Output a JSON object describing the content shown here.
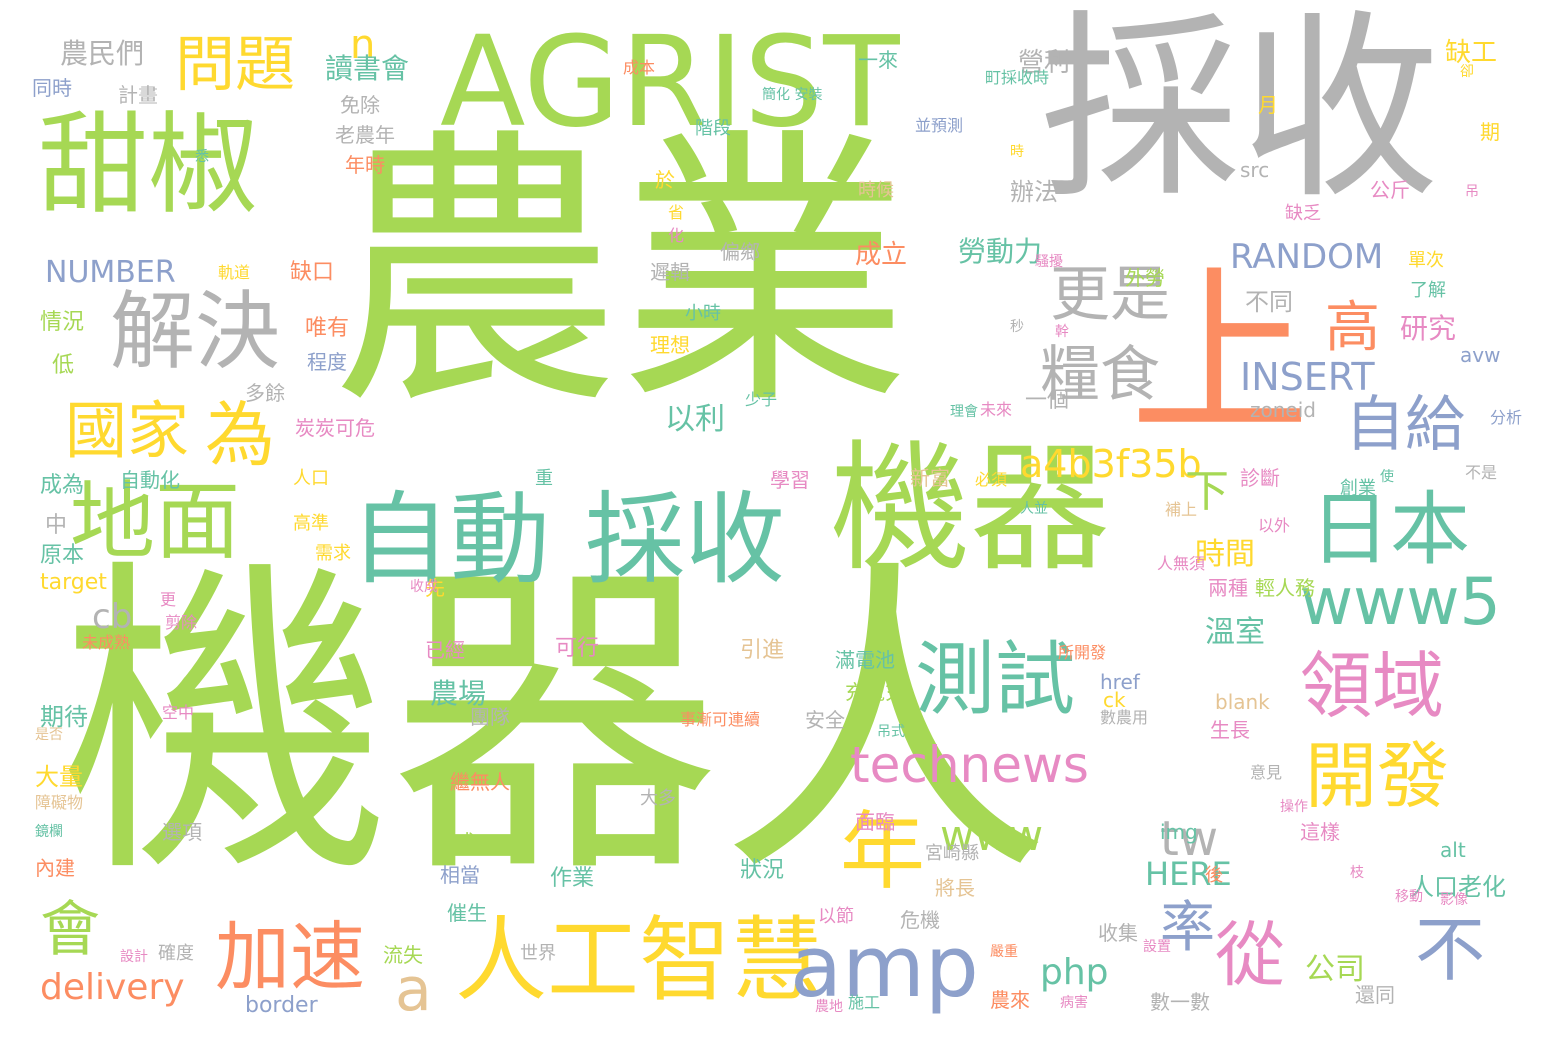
{
  "colors": {
    "green": "#a6d854",
    "gray": "#b3b3b3",
    "orange": "#fc8d62",
    "teal": "#66c2a5",
    "blue": "#8da0cb",
    "pink": "#e78ac3",
    "yellow": "#ffd92f",
    "tan": "#e5c494"
  },
  "words": [
    {
      "text": "機器人",
      "color": "green"
    },
    {
      "text": "農業",
      "color": "green"
    },
    {
      "text": "採收",
      "color": "gray"
    },
    {
      "text": "AGRIST",
      "color": "green"
    },
    {
      "text": "甜椒",
      "color": "green"
    },
    {
      "text": "上",
      "color": "orange"
    },
    {
      "text": "機器",
      "color": "green"
    },
    {
      "text": "自動",
      "color": "teal"
    },
    {
      "text": "採收",
      "color": "teal"
    },
    {
      "text": "解決",
      "color": "gray"
    },
    {
      "text": "問題",
      "color": "yellow"
    },
    {
      "text": "地面",
      "color": "green"
    },
    {
      "text": "為",
      "color": "yellow"
    },
    {
      "text": "國家",
      "color": "yellow"
    },
    {
      "text": "人工智慧",
      "color": "yellow"
    },
    {
      "text": "加速",
      "color": "orange"
    },
    {
      "text": "會",
      "color": "green"
    },
    {
      "text": "a",
      "color": "tan"
    },
    {
      "text": "amp",
      "color": "blue"
    },
    {
      "text": "年",
      "color": "yellow"
    },
    {
      "text": "測試",
      "color": "teal"
    },
    {
      "text": "日本",
      "color": "teal"
    },
    {
      "text": "www5",
      "color": "teal"
    },
    {
      "text": "領域",
      "color": "pink"
    },
    {
      "text": "開發",
      "color": "yellow"
    },
    {
      "text": "從",
      "color": "pink"
    },
    {
      "text": "不",
      "color": "blue"
    },
    {
      "text": "率",
      "color": "blue"
    },
    {
      "text": "更是",
      "color": "gray"
    },
    {
      "text": "糧食",
      "color": "gray"
    },
    {
      "text": "高",
      "color": "orange"
    },
    {
      "text": "自給",
      "color": "blue"
    },
    {
      "text": "technews",
      "color": "pink"
    },
    {
      "text": "www",
      "color": "green"
    },
    {
      "text": "tw",
      "color": "gray"
    },
    {
      "text": "delivery",
      "color": "orange"
    },
    {
      "text": "php",
      "color": "teal"
    },
    {
      "text": "INSERT",
      "color": "blue"
    },
    {
      "text": "RANDOM",
      "color": "blue"
    },
    {
      "text": "NUMBER",
      "color": "blue"
    },
    {
      "text": "HERE",
      "color": "teal"
    },
    {
      "text": "a4b3f35b",
      "color": "yellow"
    },
    {
      "text": "cb",
      "color": "gray"
    },
    {
      "text": "n",
      "color": "yellow"
    },
    {
      "text": "下",
      "color": "green"
    },
    {
      "text": "時間",
      "color": "yellow"
    },
    {
      "text": "農民們",
      "color": "gray"
    },
    {
      "text": "讀書會",
      "color": "teal"
    },
    {
      "text": "營利",
      "color": "gray"
    },
    {
      "text": "缺工",
      "color": "yellow"
    },
    {
      "text": "公司",
      "color": "green"
    },
    {
      "text": "農場",
      "color": "teal"
    },
    {
      "text": "溫室",
      "color": "teal"
    },
    {
      "text": "以利",
      "color": "teal"
    },
    {
      "text": "研究",
      "color": "pink"
    },
    {
      "text": "成立",
      "color": "orange"
    },
    {
      "text": "勞動力",
      "color": "teal"
    },
    {
      "text": "可行",
      "color": "pink"
    },
    {
      "text": "引進",
      "color": "tan"
    },
    {
      "text": "作業",
      "color": "teal"
    },
    {
      "text": "狀況",
      "color": "teal"
    },
    {
      "text": "人口老化",
      "color": "teal"
    },
    {
      "text": "期待",
      "color": "teal"
    },
    {
      "text": "大量",
      "color": "yellow"
    },
    {
      "text": "不同",
      "color": "gray"
    },
    {
      "text": "辦法",
      "color": "gray"
    },
    {
      "text": "zoneid",
      "color": "gray"
    },
    {
      "text": "src",
      "color": "gray"
    },
    {
      "text": "target",
      "color": "yellow"
    },
    {
      "text": "blank",
      "color": "tan"
    },
    {
      "text": "href",
      "color": "blue"
    },
    {
      "text": "ck",
      "color": "yellow"
    },
    {
      "text": "border",
      "color": "blue"
    },
    {
      "text": "alt",
      "color": "teal"
    },
    {
      "text": "img",
      "color": "teal"
    },
    {
      "text": "avw",
      "color": "blue"
    },
    {
      "text": "缺口",
      "color": "orange"
    },
    {
      "text": "唯有",
      "color": "orange"
    },
    {
      "text": "情況",
      "color": "green"
    },
    {
      "text": "低",
      "color": "green"
    },
    {
      "text": "成為",
      "color": "teal"
    },
    {
      "text": "自動化",
      "color": "teal"
    },
    {
      "text": "中",
      "color": "gray"
    },
    {
      "text": "原本",
      "color": "teal"
    },
    {
      "text": "同時",
      "color": "blue"
    },
    {
      "text": "計畫",
      "color": "gray"
    },
    {
      "text": "免除",
      "color": "gray"
    },
    {
      "text": "老農年",
      "color": "gray"
    },
    {
      "text": "年時",
      "color": "orange"
    },
    {
      "text": "一個",
      "color": "gray"
    },
    {
      "text": "於",
      "color": "yellow"
    },
    {
      "text": "偏鄉",
      "color": "gray"
    },
    {
      "text": "遲輯",
      "color": "gray"
    },
    {
      "text": "小時",
      "color": "teal"
    },
    {
      "text": "理想",
      "color": "yellow"
    },
    {
      "text": "少子",
      "color": "teal"
    },
    {
      "text": "多餘",
      "color": "gray"
    },
    {
      "text": "炭炭可危",
      "color": "pink"
    },
    {
      "text": "程度",
      "color": "blue"
    },
    {
      "text": "人口",
      "color": "yellow"
    },
    {
      "text": "高準",
      "color": "yellow"
    },
    {
      "text": "需求",
      "color": "yellow"
    },
    {
      "text": "重",
      "color": "teal"
    },
    {
      "text": "學習",
      "color": "pink"
    },
    {
      "text": "新富",
      "color": "tan"
    },
    {
      "text": "必須",
      "color": "yellow"
    },
    {
      "text": "診斷",
      "color": "pink"
    },
    {
      "text": "創業",
      "color": "teal"
    },
    {
      "text": "先",
      "color": "yellow"
    },
    {
      "text": "已經",
      "color": "pink"
    },
    {
      "text": "滿電池",
      "color": "teal"
    },
    {
      "text": "充電充",
      "color": "green"
    },
    {
      "text": "安全",
      "color": "gray"
    },
    {
      "text": "團隊",
      "color": "gray"
    },
    {
      "text": "事漸可連續",
      "color": "orange"
    },
    {
      "text": "大多",
      "color": "gray"
    },
    {
      "text": "面臨",
      "color": "pink"
    },
    {
      "text": "宮崎縣",
      "color": "gray"
    },
    {
      "text": "將長",
      "color": "tan"
    },
    {
      "text": "危機",
      "color": "gray"
    },
    {
      "text": "繼無人",
      "color": "orange"
    },
    {
      "text": "正式",
      "color": "green"
    },
    {
      "text": "相當",
      "color": "blue"
    },
    {
      "text": "催生",
      "color": "teal"
    },
    {
      "text": "流失",
      "color": "green"
    },
    {
      "text": "世界",
      "color": "gray"
    },
    {
      "text": "確度",
      "color": "gray"
    },
    {
      "text": "選項",
      "color": "gray"
    },
    {
      "text": "內建",
      "color": "orange"
    },
    {
      "text": "輕人務",
      "color": "green"
    },
    {
      "text": "兩種",
      "color": "pink"
    },
    {
      "text": "所開發",
      "color": "orange"
    },
    {
      "text": "數農用",
      "color": "gray"
    },
    {
      "text": "生長",
      "color": "pink"
    },
    {
      "text": "意見",
      "color": "gray"
    },
    {
      "text": "這樣",
      "color": "pink"
    },
    {
      "text": "還同",
      "color": "gray"
    },
    {
      "text": "數一數",
      "color": "gray"
    },
    {
      "text": "農來",
      "color": "orange"
    },
    {
      "text": "收集",
      "color": "gray"
    },
    {
      "text": "後",
      "color": "orange"
    },
    {
      "text": "外勞",
      "color": "green"
    },
    {
      "text": "單次",
      "color": "yellow"
    },
    {
      "text": "了解",
      "color": "teal"
    },
    {
      "text": "缺乏",
      "color": "pink"
    },
    {
      "text": "公斤",
      "color": "pink"
    },
    {
      "text": "期",
      "color": "yellow"
    },
    {
      "text": "月",
      "color": "yellow"
    },
    {
      "text": "卻",
      "color": "yellow"
    },
    {
      "text": "成本",
      "color": "orange"
    },
    {
      "text": "一來",
      "color": "teal"
    },
    {
      "text": "町採收時",
      "color": "teal"
    },
    {
      "text": "並預測",
      "color": "blue"
    },
    {
      "text": "階段",
      "color": "teal"
    },
    {
      "text": "時候",
      "color": "tan"
    },
    {
      "text": "省",
      "color": "yellow"
    },
    {
      "text": "化",
      "color": "pink"
    },
    {
      "text": "軌道",
      "color": "yellow"
    },
    {
      "text": "未來",
      "color": "pink"
    },
    {
      "text": "補上",
      "color": "tan"
    },
    {
      "text": "以外",
      "color": "pink"
    },
    {
      "text": "不是",
      "color": "gray"
    },
    {
      "text": "分析",
      "color": "blue"
    },
    {
      "text": "使",
      "color": "teal"
    },
    {
      "text": "操作",
      "color": "pink"
    },
    {
      "text": "枝",
      "color": "pink"
    },
    {
      "text": "移動",
      "color": "pink"
    },
    {
      "text": "影像",
      "color": "pink"
    },
    {
      "text": "以節",
      "color": "pink"
    },
    {
      "text": "嚴重",
      "color": "orange"
    },
    {
      "text": "病害",
      "color": "pink"
    },
    {
      "text": "施工",
      "color": "teal"
    },
    {
      "text": "農地",
      "color": "pink"
    },
    {
      "text": "設計",
      "color": "pink"
    },
    {
      "text": "設置",
      "color": "pink"
    },
    {
      "text": "更",
      "color": "pink"
    },
    {
      "text": "剪除",
      "color": "pink"
    },
    {
      "text": "收成",
      "color": "pink"
    },
    {
      "text": "未成熟",
      "color": "orange"
    },
    {
      "text": "空中",
      "color": "pink"
    },
    {
      "text": "是否",
      "color": "tan"
    },
    {
      "text": "障礙物",
      "color": "tan"
    },
    {
      "text": "鏡欄",
      "color": "teal"
    },
    {
      "text": "吊式",
      "color": "teal"
    },
    {
      "text": "人並",
      "color": "teal"
    },
    {
      "text": "人無須",
      "color": "pink"
    },
    {
      "text": "時",
      "color": "yellow"
    },
    {
      "text": "秒",
      "color": "gray"
    },
    {
      "text": "幹",
      "color": "pink"
    },
    {
      "text": "理會",
      "color": "teal"
    },
    {
      "text": "簡化 安裝",
      "color": "teal"
    },
    {
      "text": "悉",
      "color": "teal"
    },
    {
      "text": "吊",
      "color": "pink"
    },
    {
      "text": "騷擾",
      "color": "pink"
    },
    {
      "text": "濃",
      "color": "pink"
    }
  ]
}
